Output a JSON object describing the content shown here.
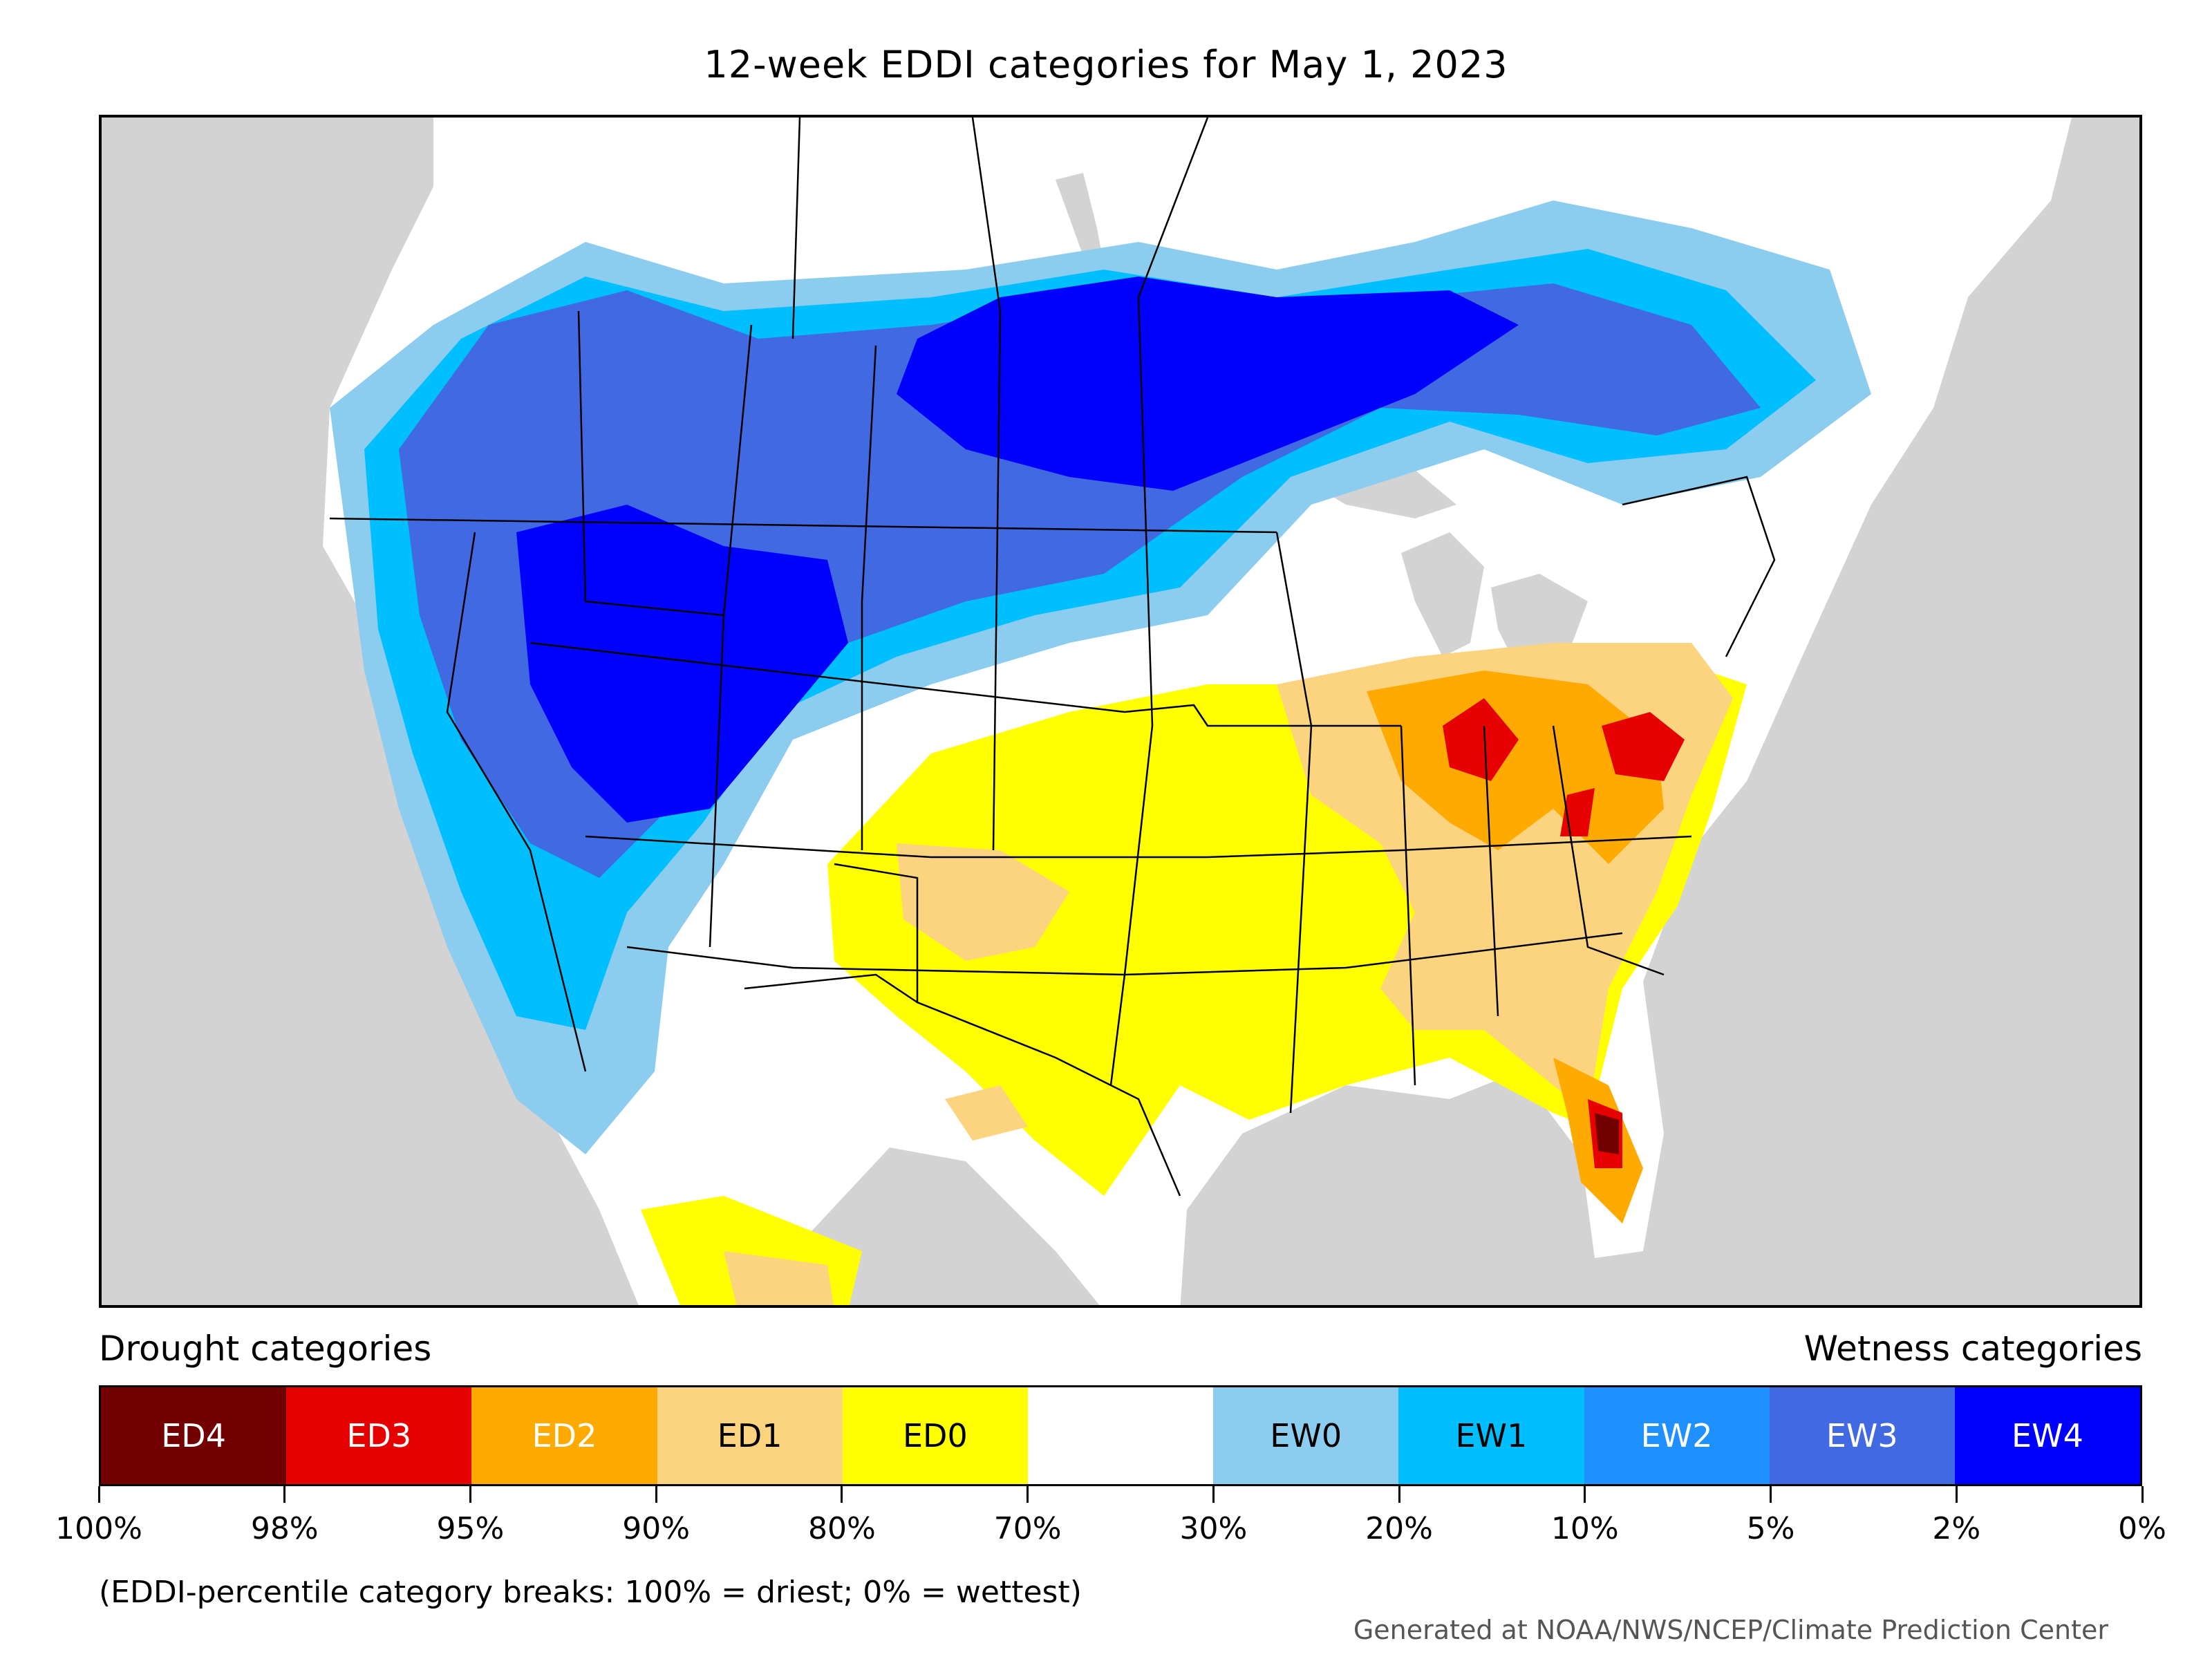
{
  "title": "12-week EDDI categories for May 1, 2023",
  "legend": {
    "drought_heading": "Drought categories",
    "wetness_heading": "Wetness categories",
    "categories": [
      {
        "label": "ED4",
        "color": "#730000",
        "text_color": "#ffffff"
      },
      {
        "label": "ED3",
        "color": "#e60000",
        "text_color": "#ffffff"
      },
      {
        "label": "ED2",
        "color": "#ffaa00",
        "text_color": "#ffffff"
      },
      {
        "label": "ED1",
        "color": "#fcd37f",
        "text_color": "#000000"
      },
      {
        "label": "ED0",
        "color": "#ffff00",
        "text_color": "#000000"
      },
      {
        "label": "",
        "color": "#ffffff",
        "text_color": "#000000"
      },
      {
        "label": "EW0",
        "color": "#8ccdef",
        "text_color": "#000000"
      },
      {
        "label": "EW1",
        "color": "#00bfff",
        "text_color": "#000000"
      },
      {
        "label": "EW2",
        "color": "#1e90ff",
        "text_color": "#ffffff"
      },
      {
        "label": "EW3",
        "color": "#4169e1",
        "text_color": "#ffffff"
      },
      {
        "label": "EW4",
        "color": "#0000ff",
        "text_color": "#ffffff"
      }
    ],
    "breaks": [
      "100%",
      "98%",
      "95%",
      "90%",
      "80%",
      "70%",
      "30%",
      "20%",
      "10%",
      "5%",
      "2%",
      "0%"
    ]
  },
  "note": "(EDDI-percentile category breaks: 100% = driest; 0% = wettest)",
  "credit": "Generated at NOAA/NWS/NCEP/Climate Prediction Center",
  "map_colors": {
    "ocean": "#d3d3d3",
    "land_neutral": "#ffffff",
    "ed4": "#730000",
    "ed3": "#e60000",
    "ed2": "#ffaa00",
    "ed1": "#fcd37f",
    "ed0": "#ffff00",
    "ew0": "#8ccdef",
    "ew1": "#00bfff",
    "ew2": "#1e90ff",
    "ew3": "#4169e1",
    "ew4": "#0000ff"
  }
}
